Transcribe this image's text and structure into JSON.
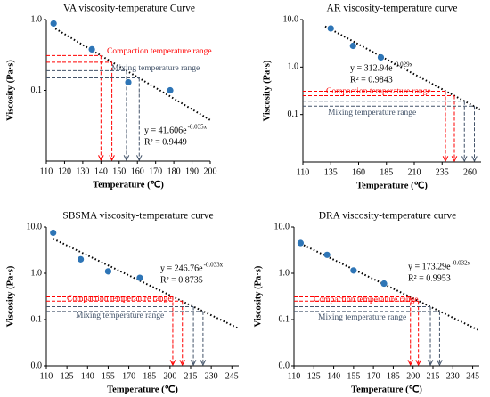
{
  "chart_data": [
    {
      "type": "scatter",
      "title": "VA viscosity-temperature Curve",
      "x_label": "Temperature (℃)",
      "y_label": "Viscosity (Pa·s)",
      "log_scale": true,
      "xlim": [
        110,
        200
      ],
      "xticks": [
        110,
        120,
        130,
        140,
        150,
        160,
        170,
        180,
        190,
        200
      ],
      "ylim": [
        0.01,
        1
      ],
      "yticks": [
        {
          "value": 0.1,
          "label": "0.1"
        },
        {
          "value": 1,
          "label": "1.0"
        }
      ],
      "series": [
        {
          "color": "#2e75b6",
          "x": [
            114,
            135,
            155,
            178
          ],
          "values": [
            0.88,
            0.38,
            0.13,
            0.1
          ]
        }
      ],
      "trend": {
        "color": "#000000",
        "x": [
          115,
          200
        ],
        "values": [
          0.743,
          0.038
        ]
      },
      "equation": "y = 41.606e",
      "equation_exponent": "-0.035x",
      "r_squared": "R² = 0.9449",
      "reference_lines": [
        {
          "name": "Compaction temperature range",
          "color": "#ff0000",
          "values": [
            0.31,
            0.25
          ],
          "x": [
            140,
            146
          ]
        },
        {
          "name": "Mixing temperature range",
          "color": "#44546a",
          "values": [
            0.19,
            0.15
          ],
          "x": [
            154,
            161
          ]
        }
      ]
    },
    {
      "type": "scatter",
      "title": "AR viscosity-temperature curve",
      "x_label": "Temperature (℃)",
      "y_label": "Viscosity (Pa·s)",
      "log_scale": true,
      "xlim": [
        110,
        270
      ],
      "xticks": [
        110,
        135,
        160,
        185,
        210,
        235,
        260
      ],
      "ylim": [
        0.01,
        10
      ],
      "yticks": [
        {
          "value": 0.1,
          "label": "0.1"
        },
        {
          "value": 1,
          "label": "1.0"
        },
        {
          "value": 10,
          "label": "10.0"
        }
      ],
      "series": [
        {
          "color": "#2e75b6",
          "x": [
            135,
            155,
            180
          ],
          "values": [
            6.5,
            2.8,
            1.6
          ]
        }
      ],
      "trend": {
        "color": "#000000",
        "x": [
          130,
          270
        ],
        "values": [
          7.2,
          0.124
        ]
      },
      "equation": "y = 312.94e",
      "equation_exponent": "-0.029x",
      "r_squared": "R² = 0.9843",
      "reference_lines": [
        {
          "name": "Compaction temperature range",
          "color": "#ff0000",
          "values": [
            0.31,
            0.25
          ],
          "x": [
            238,
            246
          ]
        },
        {
          "name": "Mixing temperature range",
          "color": "#44546a",
          "values": [
            0.19,
            0.15
          ],
          "x": [
            255,
            264
          ]
        }
      ]
    },
    {
      "type": "scatter",
      "title": "SBSMA viscosity-temperature curve",
      "x_label": "Temperature (℃)",
      "y_label": "Viscosity (Pa·s)",
      "log_scale": true,
      "xlim": [
        110,
        250
      ],
      "xticks": [
        110,
        125,
        140,
        155,
        170,
        185,
        200,
        215,
        230,
        245
      ],
      "ylim": [
        0.01,
        10
      ],
      "yticks": [
        {
          "value": 0.01,
          "label": "0.0"
        },
        {
          "value": 0.1,
          "label": "0.1"
        },
        {
          "value": 1,
          "label": "1.0"
        },
        {
          "value": 10,
          "label": "10.0"
        }
      ],
      "series": [
        {
          "color": "#2e75b6",
          "x": [
            115,
            135,
            155,
            178
          ],
          "values": [
            7.5,
            2.0,
            1.1,
            0.8
          ]
        }
      ],
      "trend": {
        "color": "#000000",
        "x": [
          115,
          250
        ],
        "values": [
          5.55,
          0.064
        ]
      },
      "equation": "y = 246.76e",
      "equation_exponent": "-0.033x",
      "r_squared": "R² = 0.8735",
      "reference_lines": [
        {
          "name": "Compaction temperature range",
          "color": "#ff0000",
          "values": [
            0.31,
            0.25
          ],
          "x": [
            202,
            209
          ]
        },
        {
          "name": "Mixing temperature range",
          "color": "#44546a",
          "values": [
            0.19,
            0.15
          ],
          "x": [
            217,
            224
          ]
        }
      ]
    },
    {
      "type": "scatter",
      "title": "DRA viscosity-temperature curve",
      "x_label": "Temperature (℃)",
      "y_label": "Viscosity (Pa·s)",
      "log_scale": true,
      "xlim": [
        110,
        250
      ],
      "xticks": [
        110,
        125,
        140,
        155,
        170,
        185,
        200,
        215,
        230,
        245
      ],
      "ylim": [
        0.01,
        10
      ],
      "yticks": [
        {
          "value": 0.01,
          "label": "0.0"
        },
        {
          "value": 0.1,
          "label": "0.1"
        },
        {
          "value": 1,
          "label": "1.0"
        },
        {
          "value": 10,
          "label": "10.0"
        }
      ],
      "series": [
        {
          "color": "#2e75b6",
          "x": [
            115,
            135,
            155,
            178
          ],
          "values": [
            4.5,
            2.5,
            1.15,
            0.6
          ]
        }
      ],
      "trend": {
        "color": "#000000",
        "x": [
          115,
          250
        ],
        "values": [
          4.37,
          0.058
        ]
      },
      "equation": "y = 173.29e",
      "equation_exponent": "-0.032x",
      "r_squared": "R² = 0.9953",
      "reference_lines": [
        {
          "name": "Compaction temperature range",
          "color": "#ff0000",
          "values": [
            0.31,
            0.25
          ],
          "x": [
            198,
            204
          ]
        },
        {
          "name": "Mixing temperature range",
          "color": "#44546a",
          "values": [
            0.19,
            0.15
          ],
          "x": [
            213,
            220
          ]
        }
      ]
    }
  ]
}
